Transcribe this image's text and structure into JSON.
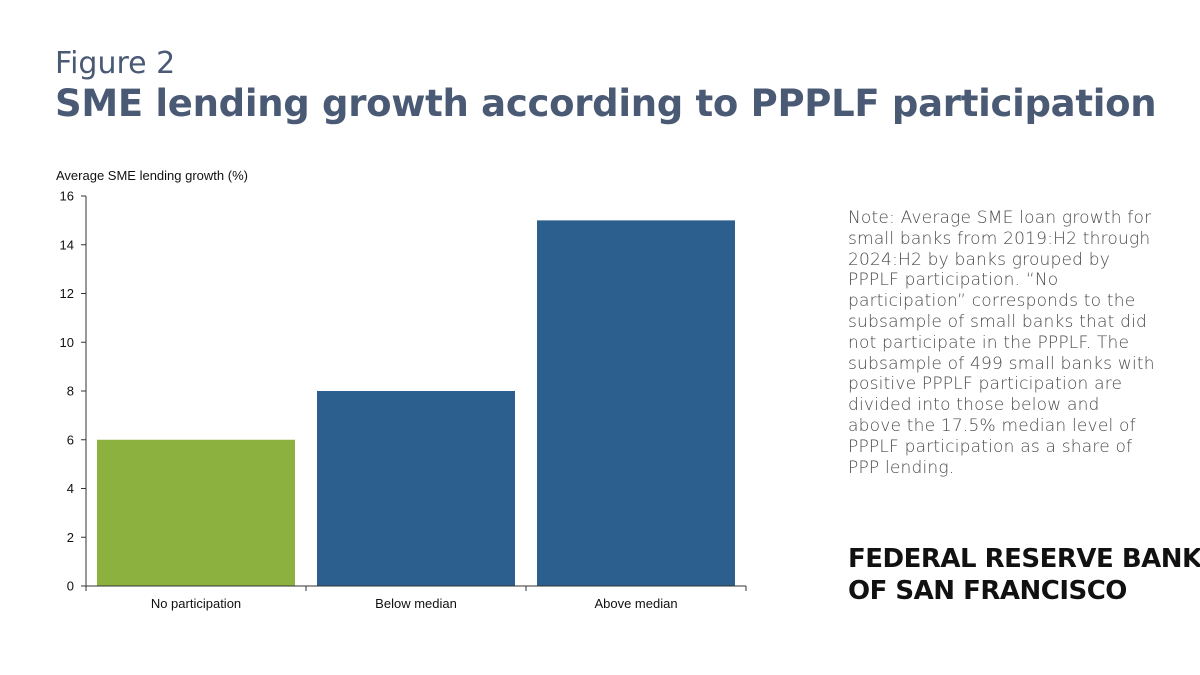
{
  "header": {
    "figure_label": "Figure 2",
    "title": "SME lending growth according to PPPLF participation"
  },
  "note": "Note: Average SME loan growth for small banks from 2019:H2 through 2024:H2 by banks grouped by PPPLF participation. “No participation” corresponds to the subsample of small banks that did not participate in the PPPLF. The subsample of 499 small banks with positive PPPLF participation are divided into those below and above the 17.5% median level of PPPLF participation as a share of PPP lending.",
  "brand": {
    "line1": "FEDERAL RESERVE BANK",
    "line2": "OF SAN FRANCISCO"
  },
  "chart_data": {
    "type": "bar",
    "title": "",
    "ylabel": "Average SME lending growth (%)",
    "xlabel": "",
    "categories": [
      "No participation",
      "Below median",
      "Above median"
    ],
    "values": [
      6,
      8,
      15
    ],
    "colors": [
      "#8db13f",
      "#2d5f8e",
      "#2d5f8e"
    ],
    "ylim": [
      0,
      16
    ],
    "yticks": [
      0,
      2,
      4,
      6,
      8,
      10,
      12,
      14,
      16
    ],
    "grid": false,
    "legend": "none"
  }
}
